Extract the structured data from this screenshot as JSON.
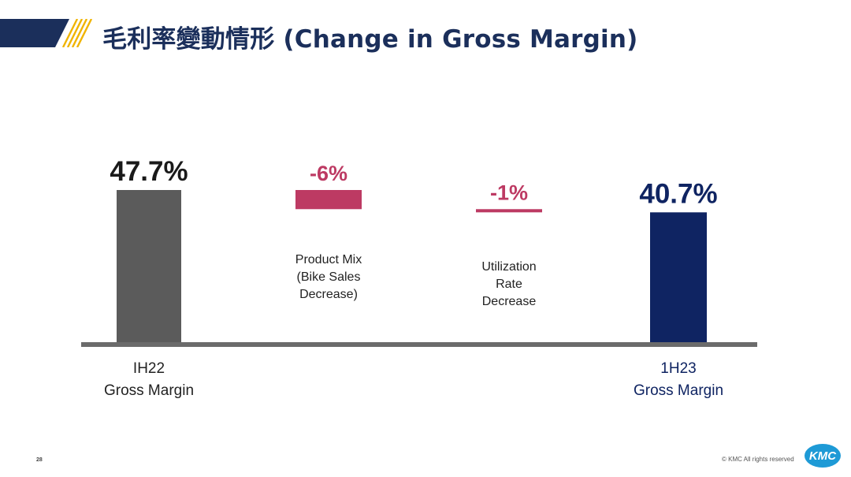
{
  "header": {
    "title": "毛利率變動情形 (Change in Gross Margin)",
    "band_color": "#1b2f5b",
    "stripe_color": "#f0b400"
  },
  "chart_data": {
    "type": "bar",
    "subtype": "waterfall",
    "categories": [
      "IH22\nGross Margin",
      "Product Mix\n(Bike Sales\nDecrease)",
      "Utilization\nRate\nDecrease",
      "1H23\nGross Margin"
    ],
    "values": [
      47.7,
      -6,
      -1,
      40.7
    ],
    "data_labels": [
      "47.7%",
      "-6%",
      "-1%",
      "40.7%"
    ],
    "bar_colors": [
      "#5b5b5b",
      "#bd3a63",
      "#bd3a63",
      "#0f2462"
    ],
    "label_colors": [
      "#1a1a1a",
      "#bd3a63",
      "#bd3a63",
      "#0f2462"
    ],
    "category_label_colors": [
      "#222222",
      "#222222",
      "#222222",
      "#0f2462"
    ],
    "ylim": [
      0,
      47.7
    ],
    "title": "",
    "xlabel": "",
    "ylabel": "",
    "grid": false,
    "legend": "none"
  },
  "footer": {
    "page_number": "28",
    "copyright": "© KMC All rights reserved",
    "logo_text": "KMC",
    "logo_color": "#1e9ad6"
  }
}
